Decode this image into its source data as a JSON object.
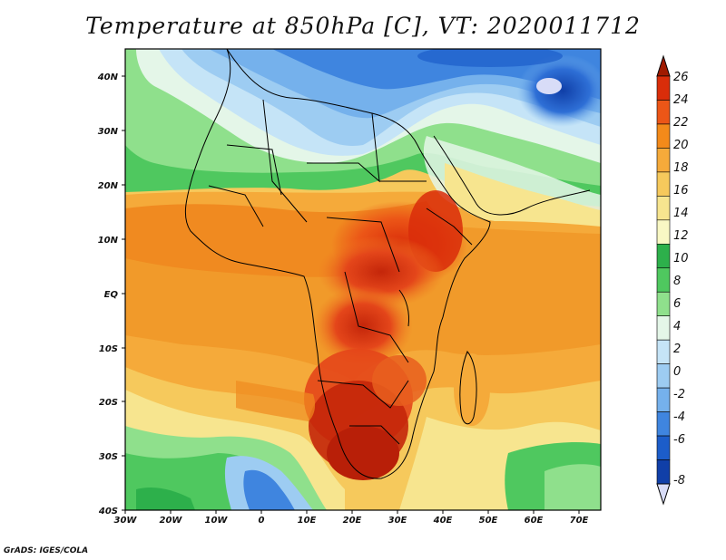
{
  "title": "Temperature at 850hPa [C], VT: 2020011712",
  "credit": "GrADS: IGES/COLA",
  "lat_labels": [
    "40N",
    "30N",
    "20N",
    "10N",
    "EQ",
    "10S",
    "20S",
    "30S",
    "40S"
  ],
  "lon_labels": [
    "30W",
    "20W",
    "10W",
    "0",
    "10E",
    "20E",
    "30E",
    "40E",
    "50E",
    "60E",
    "70E"
  ],
  "colorbar": {
    "labels": [
      "26",
      "24",
      "22",
      "20",
      "18",
      "16",
      "14",
      "12",
      "10",
      "8",
      "6",
      "4",
      "2",
      "0",
      "-2",
      "-4",
      "-6",
      "-8"
    ],
    "colors": [
      "#a01a00",
      "#d92d0a",
      "#ec5617",
      "#f38a1a",
      "#f5aa3a",
      "#f6c95c",
      "#f7e58f",
      "#f9f8c4",
      "#2db04b",
      "#4fc85f",
      "#8fe08c",
      "#e4f6e8",
      "#c5e4f7",
      "#9dccf2",
      "#75b1ec",
      "#3f85df",
      "#1c5dc9",
      "#103fa8",
      "#0b1f7a"
    ],
    "over_color": "#a01a00",
    "under_color": "#d8dcf7"
  }
}
